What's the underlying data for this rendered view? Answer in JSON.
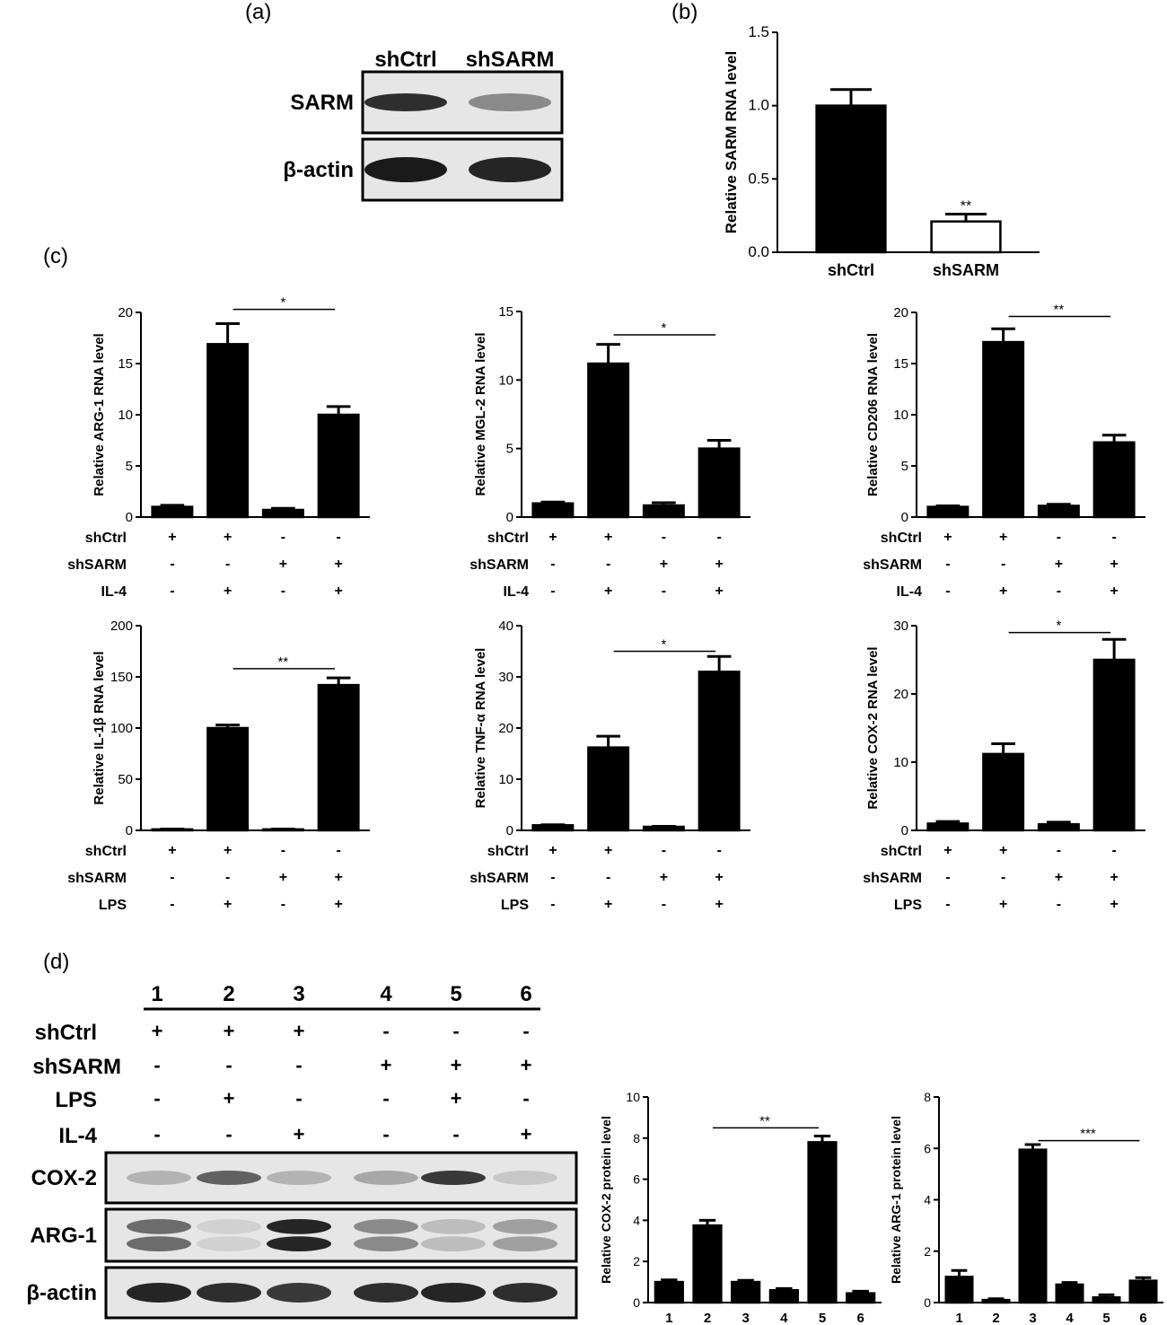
{
  "panel_labels": {
    "a": "(a)",
    "b": "(b)",
    "c": "(c)",
    "d": "(d)"
  },
  "blot_a": {
    "lanes": [
      "shCtrl",
      "shSARM"
    ],
    "rows": [
      "SARM",
      "β-actin"
    ],
    "band_intensity": {
      "SARM": [
        0.9,
        0.45
      ],
      "β-actin": [
        1.0,
        0.95
      ]
    }
  },
  "blot_d": {
    "lane_numbers": [
      "1",
      "2",
      "3",
      "4",
      "5",
      "6"
    ],
    "conditions": [
      {
        "label": "shCtrl",
        "signs": [
          "+",
          "+",
          "+",
          "-",
          "-",
          "-"
        ]
      },
      {
        "label": "shSARM",
        "signs": [
          "-",
          "-",
          "-",
          "+",
          "+",
          "+"
        ]
      },
      {
        "label": "LPS",
        "signs": [
          "-",
          "+",
          "-",
          "-",
          "+",
          "-"
        ]
      },
      {
        "label": "IL-4",
        "signs": [
          "-",
          "-",
          "+",
          "-",
          "-",
          "+"
        ]
      }
    ],
    "rows": [
      "COX-2",
      "ARG-1",
      "β-actin"
    ],
    "band_intensity": {
      "COX-2": [
        0.25,
        0.65,
        0.25,
        0.3,
        0.85,
        0.15
      ],
      "ARG-1": [
        0.6,
        0.1,
        0.95,
        0.45,
        0.2,
        0.35
      ],
      "β-actin": [
        0.95,
        0.9,
        0.85,
        0.9,
        0.95,
        0.9
      ]
    }
  },
  "colors": {
    "bar_fill": "#000000",
    "open_bar_fill": "#ffffff",
    "blot_background": "#e6e6e6",
    "band": "#1a1a1a"
  },
  "chart_data": [
    {
      "id": "b",
      "type": "bar",
      "ylabel": "Relative SARM RNA level",
      "categories": [
        "shCtrl",
        "shSARM"
      ],
      "values": [
        1.0,
        0.21
      ],
      "errors": [
        0.11,
        0.05
      ],
      "fills": [
        "#000000",
        "#ffffff"
      ],
      "ylim": [
        0,
        1.5
      ],
      "yticks": [
        "0.0",
        "0.5",
        "1.0",
        "1.5"
      ],
      "star_marks": [
        {
          "bar": 1,
          "label": "**"
        }
      ]
    },
    {
      "id": "c1",
      "type": "bar",
      "ylabel": "Relative ARG-1 RNA level",
      "values": [
        1.0,
        16.9,
        0.7,
        10.0
      ],
      "errors": [
        0.15,
        2.0,
        0.15,
        0.8
      ],
      "ylim": [
        0,
        20
      ],
      "yticks": [
        "0",
        "5",
        "10",
        "15",
        "20"
      ],
      "sig": {
        "from": 1,
        "to": 3,
        "label": "*",
        "y": 20.3
      },
      "conditions": [
        {
          "label": "shCtrl",
          "signs": [
            "+",
            "+",
            "-",
            "-"
          ]
        },
        {
          "label": "shSARM",
          "signs": [
            "-",
            "-",
            "+",
            "+"
          ]
        },
        {
          "label": "IL-4",
          "signs": [
            "-",
            "+",
            "-",
            "+"
          ]
        }
      ]
    },
    {
      "id": "c2",
      "type": "bar",
      "ylabel": "Relative MGL-2 RNA level",
      "values": [
        1.0,
        11.2,
        0.85,
        5.0
      ],
      "errors": [
        0.1,
        1.4,
        0.2,
        0.6
      ],
      "ylim": [
        0,
        15
      ],
      "yticks": [
        "0",
        "5",
        "10",
        "15"
      ],
      "sig": {
        "from": 1,
        "to": 3,
        "label": "*",
        "y": 13.3
      },
      "conditions": [
        {
          "label": "shCtrl",
          "signs": [
            "+",
            "+",
            "-",
            "-"
          ]
        },
        {
          "label": "shSARM",
          "signs": [
            "-",
            "-",
            "+",
            "+"
          ]
        },
        {
          "label": "IL-4",
          "signs": [
            "-",
            "+",
            "-",
            "+"
          ]
        }
      ]
    },
    {
      "id": "c3",
      "type": "bar",
      "ylabel": "Relative CD206 RNA level",
      "values": [
        1.0,
        17.1,
        1.1,
        7.3
      ],
      "errors": [
        0.1,
        1.3,
        0.15,
        0.7
      ],
      "ylim": [
        0,
        20
      ],
      "yticks": [
        "0",
        "5",
        "10",
        "15",
        "20"
      ],
      "sig": {
        "from": 1,
        "to": 3,
        "label": "**",
        "y": 19.6
      },
      "conditions": [
        {
          "label": "shCtrl",
          "signs": [
            "+",
            "+",
            "-",
            "-"
          ]
        },
        {
          "label": "shSARM",
          "signs": [
            "-",
            "-",
            "+",
            "+"
          ]
        },
        {
          "label": "IL-4",
          "signs": [
            "-",
            "+",
            "-",
            "+"
          ]
        }
      ]
    },
    {
      "id": "c4",
      "type": "bar",
      "ylabel": "Relative IL-1β RNA level",
      "values": [
        1.0,
        100,
        1.0,
        142
      ],
      "errors": [
        0.3,
        3,
        0.3,
        7
      ],
      "ylim": [
        0,
        200
      ],
      "yticks": [
        "0",
        "50",
        "100",
        "150",
        "200"
      ],
      "sig": {
        "from": 1,
        "to": 3,
        "label": "**",
        "y": 158
      },
      "conditions": [
        {
          "label": "shCtrl",
          "signs": [
            "+",
            "+",
            "-",
            "-"
          ]
        },
        {
          "label": "shSARM",
          "signs": [
            "-",
            "-",
            "+",
            "+"
          ]
        },
        {
          "label": "LPS",
          "signs": [
            "-",
            "+",
            "-",
            "+"
          ]
        }
      ]
    },
    {
      "id": "c5",
      "type": "bar",
      "ylabel": "Relative TNF-α RNA level",
      "values": [
        1.0,
        16.2,
        0.7,
        31.0
      ],
      "errors": [
        0.1,
        2.2,
        0.1,
        3.0
      ],
      "ylim": [
        0,
        40
      ],
      "yticks": [
        "0",
        "10",
        "20",
        "30",
        "40"
      ],
      "sig": {
        "from": 1,
        "to": 3,
        "label": "*",
        "y": 35
      },
      "conditions": [
        {
          "label": "shCtrl",
          "signs": [
            "+",
            "+",
            "-",
            "-"
          ]
        },
        {
          "label": "shSARM",
          "signs": [
            "-",
            "-",
            "+",
            "+"
          ]
        },
        {
          "label": "LPS",
          "signs": [
            "-",
            "+",
            "-",
            "+"
          ]
        }
      ]
    },
    {
      "id": "c6",
      "type": "bar",
      "ylabel": "Relative COX-2 RNA level",
      "values": [
        1.0,
        11.2,
        0.9,
        25.0
      ],
      "errors": [
        0.3,
        1.5,
        0.3,
        3.0
      ],
      "ylim": [
        0,
        30
      ],
      "yticks": [
        "0",
        "10",
        "20",
        "30"
      ],
      "sig": {
        "from": 1,
        "to": 3,
        "label": "*",
        "y": 29
      },
      "conditions": [
        {
          "label": "shCtrl",
          "signs": [
            "+",
            "+",
            "-",
            "-"
          ]
        },
        {
          "label": "shSARM",
          "signs": [
            "-",
            "-",
            "+",
            "+"
          ]
        },
        {
          "label": "LPS",
          "signs": [
            "-",
            "+",
            "-",
            "+"
          ]
        }
      ]
    },
    {
      "id": "d1",
      "type": "bar",
      "ylabel": "Relative COX-2 protein level",
      "categories": [
        "1",
        "2",
        "3",
        "4",
        "5",
        "6"
      ],
      "values": [
        1.0,
        3.75,
        1.0,
        0.6,
        7.8,
        0.45
      ],
      "errors": [
        0.1,
        0.25,
        0.08,
        0.08,
        0.3,
        0.1
      ],
      "ylim": [
        0,
        10
      ],
      "yticks": [
        "0",
        "2",
        "4",
        "6",
        "8",
        "10"
      ],
      "sig": {
        "from": 1,
        "to": 4,
        "label": "**",
        "y": 8.5
      }
    },
    {
      "id": "d2",
      "type": "bar",
      "ylabel": "Relative ARG-1 protein level",
      "categories": [
        "1",
        "2",
        "3",
        "4",
        "5",
        "6"
      ],
      "values": [
        1.0,
        0.1,
        5.95,
        0.7,
        0.2,
        0.85
      ],
      "errors": [
        0.25,
        0.05,
        0.2,
        0.08,
        0.1,
        0.12
      ],
      "ylim": [
        0,
        8
      ],
      "yticks": [
        "0",
        "2",
        "4",
        "6",
        "8"
      ],
      "sig": {
        "from": 2,
        "to": 5,
        "label": "***",
        "y": 6.3
      }
    }
  ]
}
